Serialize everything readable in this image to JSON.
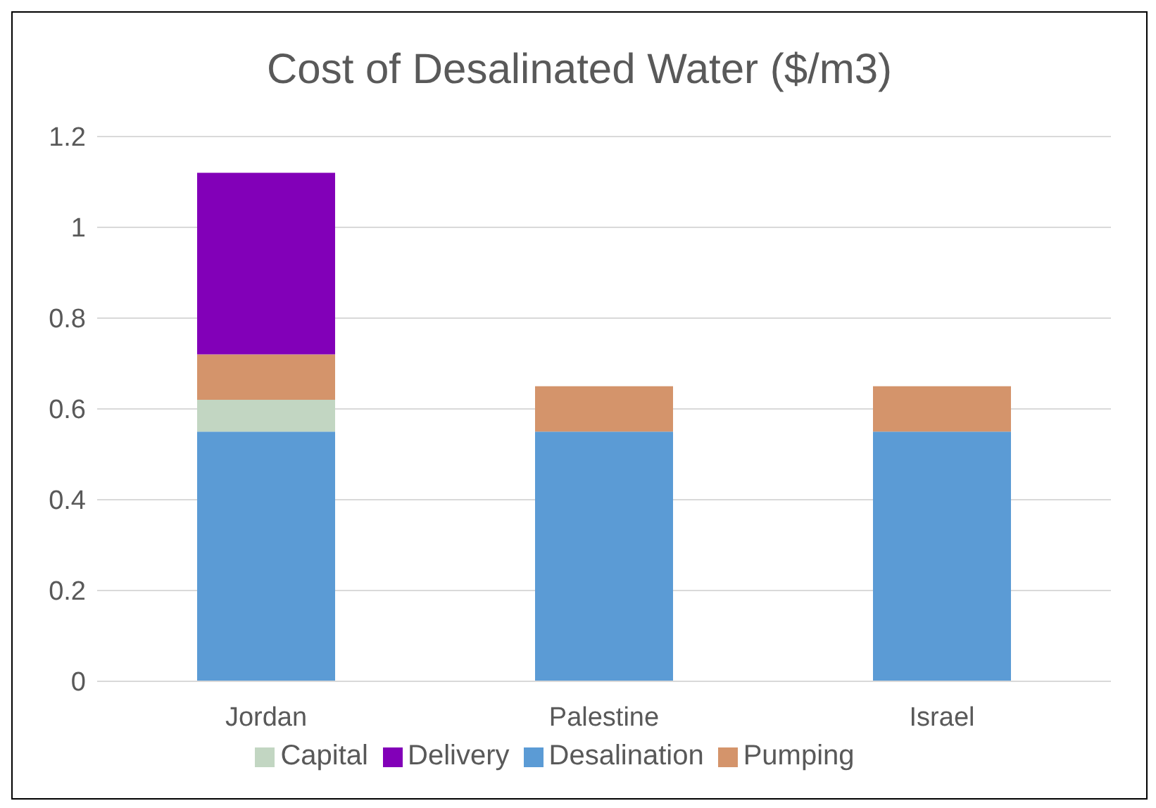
{
  "chart_data": {
    "type": "bar",
    "title": "Cost of Desalinated Water ($/m3)",
    "categories": [
      "Jordan",
      "Palestine",
      "Israel"
    ],
    "stacked": true,
    "series": [
      {
        "name": "Desalination",
        "color": "#5b9bd5",
        "values": [
          0.55,
          0.55,
          0.55
        ]
      },
      {
        "name": "Capital",
        "color": "#c2d6c2",
        "values": [
          0.07,
          0,
          0
        ]
      },
      {
        "name": "Pumping",
        "color": "#d4946b",
        "values": [
          0.1,
          0.1,
          0.1
        ]
      },
      {
        "name": "Delivery",
        "color": "#8200b8",
        "values": [
          0.4,
          0,
          0
        ]
      }
    ],
    "ylim": [
      0,
      1.2
    ],
    "yticks": [
      0,
      0.2,
      0.4,
      0.6,
      0.8,
      1,
      1.2
    ],
    "grid": "y",
    "legend": "bottom"
  }
}
